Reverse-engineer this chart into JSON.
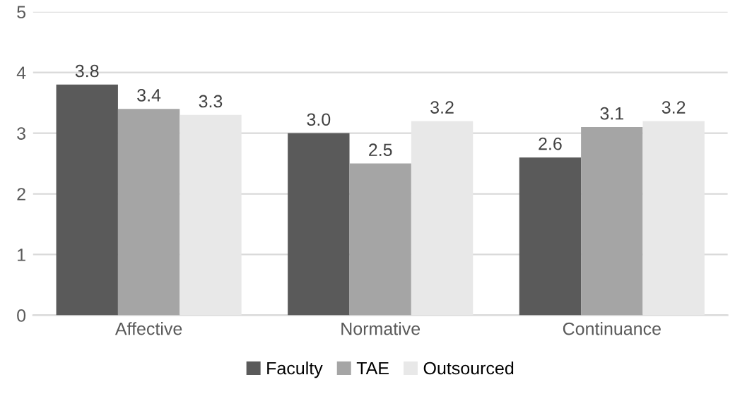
{
  "chart_data": {
    "type": "bar",
    "categories": [
      "Affective",
      "Normative",
      "Continuance"
    ],
    "series": [
      {
        "name": "Faculty",
        "color": "#5a5a5a",
        "values": [
          3.8,
          3.0,
          2.6
        ],
        "value_labels": [
          "3.8",
          "3.0",
          "2.6"
        ]
      },
      {
        "name": "TAE",
        "color": "#a5a5a5",
        "values": [
          3.4,
          2.5,
          3.1
        ],
        "value_labels": [
          "3.4",
          "2.5",
          "3.1"
        ]
      },
      {
        "name": "Outsourced",
        "color": "#e8e8e8",
        "values": [
          3.3,
          3.2,
          3.2
        ],
        "value_labels": [
          "3.3",
          "3.2",
          "3.2"
        ]
      }
    ],
    "ylim": [
      0,
      5
    ],
    "yticks": [
      0,
      1,
      2,
      3,
      4,
      5
    ],
    "grid": "y",
    "legend": "bottom"
  }
}
